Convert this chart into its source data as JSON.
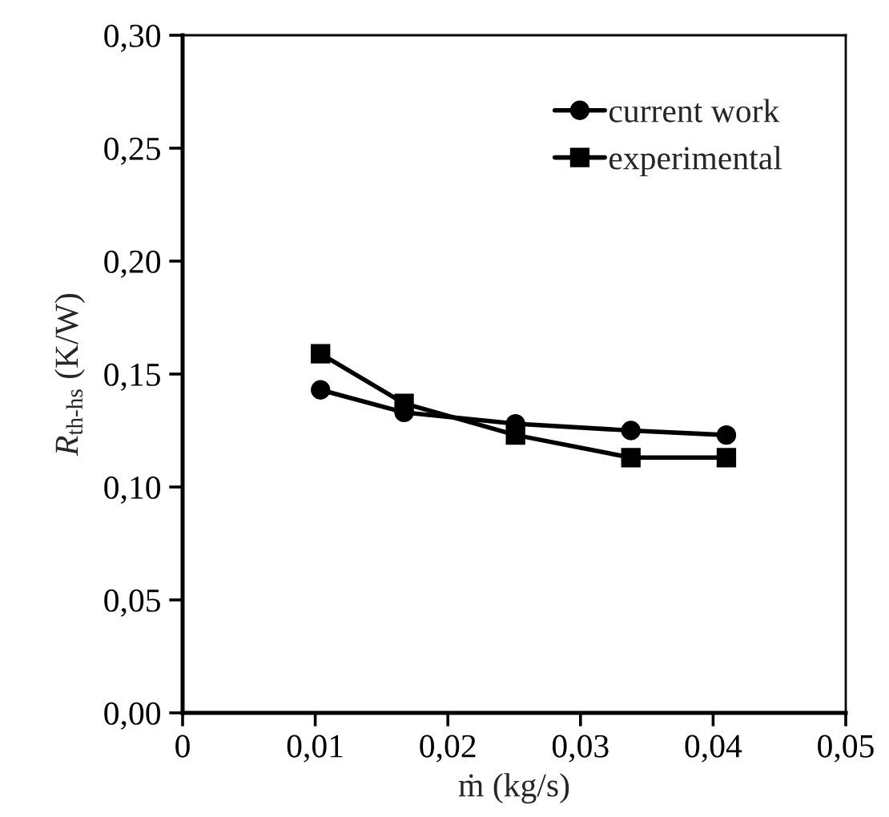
{
  "chart_data": {
    "type": "line",
    "xlabel": "ṁ (kg/s)",
    "ylabel": "R$_{th-hs}$ (K/W)",
    "x": [
      0.0104,
      0.0167,
      0.0251,
      0.0338,
      0.041
    ],
    "series": [
      {
        "name": "current work",
        "color": "#000000",
        "marker": "circle",
        "values": [
          0.143,
          0.133,
          0.128,
          0.125,
          0.123
        ]
      },
      {
        "name": "experimental",
        "color": "#000000",
        "marker": "square",
        "values": [
          0.159,
          0.137,
          0.123,
          0.113,
          0.113
        ]
      }
    ],
    "xlim": [
      0,
      0.05
    ],
    "xticks": [
      0,
      {
        "value": 0.01,
        "label": "0,01"
      },
      {
        "value": 0.02,
        "label": "0,02"
      },
      {
        "value": 0.03,
        "label": "0,03"
      },
      {
        "value": 0.04,
        "label": "0,04"
      },
      {
        "value": 0.05,
        "label": "0,05"
      }
    ],
    "ylim": [
      0,
      0.3
    ],
    "yticks": [
      {
        "value": 0,
        "label": "0,00"
      },
      {
        "value": 0.05,
        "label": "0,05"
      },
      {
        "value": 0.1,
        "label": "0,10"
      },
      {
        "value": 0.15,
        "label": "0,15"
      },
      {
        "value": 0.2,
        "label": "0,20"
      },
      {
        "value": 0.25,
        "label": "0,25"
      },
      {
        "value": 0.3,
        "label": "0,30"
      }
    ],
    "grid": false,
    "legend": "top right",
    "line_style": "solid"
  }
}
